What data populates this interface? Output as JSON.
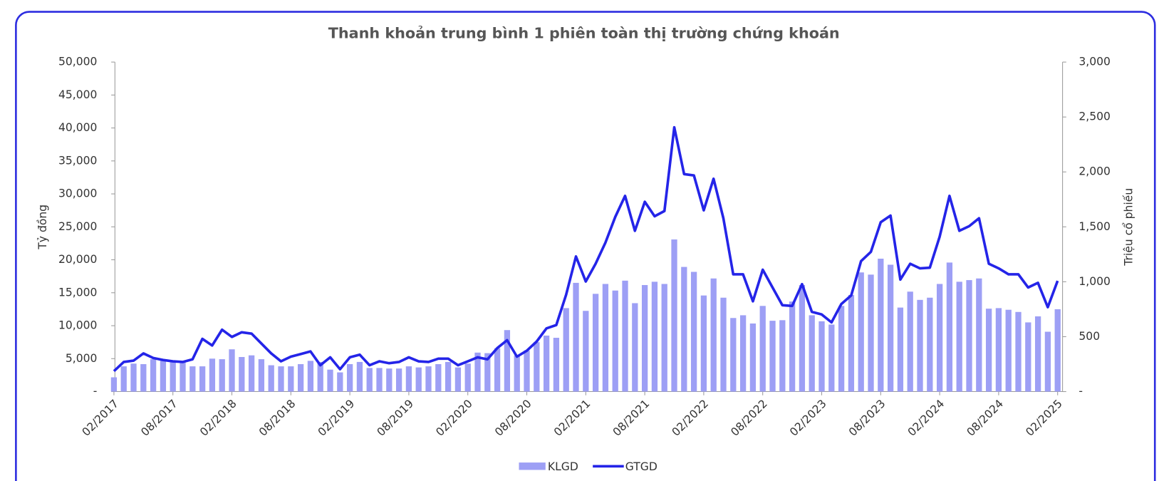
{
  "chart_data": {
    "type": "bar-line",
    "title": "Thanh khoản trung bình 1 phiên toàn thị trường chứng khoán",
    "y_label": "Tỷ đồng",
    "y2_label": "Triệu cổ phiếu",
    "categories": [
      "02/2017",
      null,
      null,
      null,
      null,
      null,
      "08/2017",
      null,
      null,
      null,
      null,
      null,
      "02/2018",
      null,
      null,
      null,
      null,
      null,
      "08/2018",
      null,
      null,
      null,
      null,
      null,
      "02/2019",
      null,
      null,
      null,
      null,
      null,
      "08/2019",
      null,
      null,
      null,
      null,
      null,
      "02/2020",
      null,
      null,
      null,
      null,
      null,
      "08/2020",
      null,
      null,
      null,
      null,
      null,
      "02/2021",
      null,
      null,
      null,
      null,
      null,
      "08/2021",
      null,
      null,
      null,
      null,
      null,
      "02/2022",
      null,
      null,
      null,
      null,
      null,
      "08/2022",
      null,
      null,
      null,
      null,
      null,
      "02/2023",
      null,
      null,
      null,
      null,
      null,
      "08/2023",
      null,
      null,
      null,
      null,
      null,
      "02/2024",
      null,
      null,
      null,
      null,
      null,
      "08/2024",
      null,
      null,
      null,
      null,
      null,
      "02/2025"
    ],
    "series": [
      {
        "name": "KLGD",
        "type": "bar",
        "axis": "y2",
        "color": "#9d9ff5",
        "values": [
          130,
          230,
          255,
          250,
          295,
          280,
          275,
          270,
          230,
          230,
          300,
          295,
          385,
          315,
          330,
          295,
          240,
          230,
          230,
          250,
          280,
          270,
          200,
          175,
          250,
          270,
          215,
          215,
          210,
          210,
          230,
          220,
          230,
          250,
          270,
          220,
          255,
          355,
          350,
          395,
          560,
          330,
          375,
          450,
          510,
          490,
          760,
          990,
          735,
          890,
          980,
          920,
          1010,
          805,
          970,
          1000,
          980,
          1385,
          1135,
          1090,
          875,
          1030,
          855,
          670,
          695,
          620,
          780,
          645,
          650,
          820,
          970,
          695,
          640,
          610,
          780,
          880,
          1085,
          1065,
          1210,
          1155,
          765,
          910,
          835,
          855,
          980,
          1175,
          1000,
          1015,
          1030,
          755,
          760,
          745,
          725,
          630,
          685,
          545,
          750
        ]
      },
      {
        "name": "GTGD",
        "type": "line",
        "axis": "y",
        "color": "#2424e8",
        "values": [
          3100,
          4500,
          4700,
          5800,
          5100,
          4800,
          4600,
          4500,
          4900,
          8000,
          7000,
          9400,
          8300,
          9000,
          8800,
          7300,
          5800,
          4600,
          5300,
          5700,
          6100,
          4000,
          5200,
          3400,
          5200,
          5600,
          4000,
          4600,
          4300,
          4500,
          5200,
          4600,
          4500,
          5000,
          5000,
          4000,
          4600,
          5200,
          4900,
          6600,
          7800,
          5300,
          6200,
          7600,
          9600,
          10100,
          14700,
          20500,
          16700,
          19400,
          22600,
          26500,
          29700,
          24400,
          28800,
          26600,
          27400,
          40100,
          33000,
          32800,
          27500,
          32300,
          26300,
          17800,
          17800,
          13700,
          18500,
          15800,
          13100,
          13000,
          16300,
          12100,
          11700,
          10500,
          13300,
          14600,
          19800,
          21200,
          25700,
          26700,
          17000,
          19400,
          18700,
          18800,
          23500,
          29700,
          24400,
          25100,
          26300,
          19400,
          18700,
          17800,
          17800,
          15800,
          16500,
          12800,
          16800
        ]
      }
    ],
    "ylim": [
      0,
      50000
    ],
    "yticks": [
      {
        "value": 0,
        "label": "-"
      },
      {
        "value": 5000,
        "label": "5,000"
      },
      {
        "value": 10000,
        "label": "10,000"
      },
      {
        "value": 15000,
        "label": "15,000"
      },
      {
        "value": 20000,
        "label": "20,000"
      },
      {
        "value": 25000,
        "label": "25,000"
      },
      {
        "value": 30000,
        "label": "30,000"
      },
      {
        "value": 35000,
        "label": "35,000"
      },
      {
        "value": 40000,
        "label": "40,000"
      },
      {
        "value": 45000,
        "label": "45,000"
      },
      {
        "value": 50000,
        "label": "50,000"
      }
    ],
    "y2lim": [
      0,
      3000
    ],
    "y2ticks": [
      {
        "value": 0,
        "label": "-"
      },
      500,
      {
        "value": 1000,
        "label": "1,000"
      },
      {
        "value": 1500,
        "label": "1,500"
      },
      {
        "value": 2000,
        "label": "2,000"
      },
      {
        "value": 2500,
        "label": "2,500"
      },
      {
        "value": 3000,
        "label": "3,000"
      }
    ],
    "legend": "bottom"
  }
}
